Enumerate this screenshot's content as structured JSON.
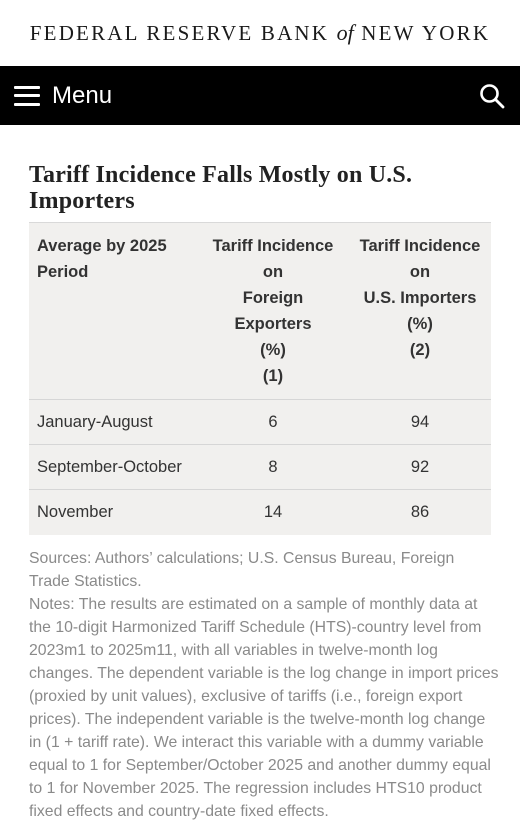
{
  "header": {
    "logo_pre": "FEDERAL RESERVE BANK",
    "logo_of": "of",
    "logo_post": "NEW YORK"
  },
  "nav": {
    "menu_label": "Menu",
    "menu_icon": "hamburger-icon",
    "search_icon": "search-icon"
  },
  "table": {
    "title": "Tariff Incidence Falls Mostly on U.S. Importers",
    "headers": [
      [
        "Average by 2025",
        "Period"
      ],
      [
        "Tariff Incidence on",
        "Foreign Exporters",
        "(%)",
        "(1)"
      ],
      [
        "Tariff Incidence",
        "on",
        "U.S. Importers",
        "(%)",
        "(2)"
      ]
    ],
    "rows": [
      [
        "January-August",
        "6",
        "94"
      ],
      [
        "September-October",
        "8",
        "92"
      ],
      [
        "November",
        "14",
        "86"
      ]
    ]
  },
  "notes": {
    "sources": "Sources: Authors’ calculations; U.S. Census Bureau, Foreign Trade Statistics.",
    "notes": "Notes: The results are estimated on a sample of monthly data at the 10-digit Harmonized Tariff Schedule (HTS)-country level from 2023m1 to 2025m11, with all variables in twelve-month log changes. The dependent variable is the log change in import prices (proxied by unit values), exclusive of tariffs (i.e., foreign export prices). The independent variable is the twelve-month log change in (1 + tariff rate). We interact this variable with a dummy variable equal to 1 for September/October 2025 and another dummy equal to 1 for November 2025. The regression includes HTS10 product fixed effects and country-date fixed effects."
  },
  "colors": {
    "nav_bg": "#000000",
    "table_bg": "#f1f0ee",
    "notes_text": "#8a8a8a"
  }
}
